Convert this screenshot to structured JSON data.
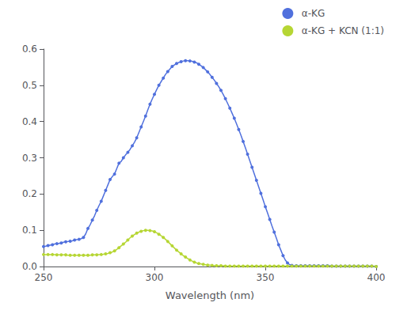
{
  "chart_data": {
    "type": "line",
    "xlabel": "Wavelength (nm)",
    "xlim": [
      250,
      400
    ],
    "ylim": [
      0,
      0.6
    ],
    "xticks": [
      250,
      300,
      350,
      400
    ],
    "yticks": [
      {
        "value": 0,
        "label": "0.0"
      },
      0.1,
      0.2,
      0.3,
      0.4,
      0.5,
      0.6
    ],
    "grid": false,
    "legend": "upper right",
    "marker": "circle",
    "x": [
      250,
      251,
      252,
      253,
      254,
      255,
      256,
      257,
      258,
      259,
      260,
      261,
      262,
      263,
      264,
      265,
      266,
      267,
      268,
      269,
      270,
      271,
      272,
      273,
      274,
      275,
      276,
      277,
      278,
      279,
      280,
      281,
      282,
      283,
      284,
      285,
      286,
      287,
      288,
      289,
      290,
      291,
      292,
      293,
      294,
      295,
      296,
      297,
      298,
      299,
      300,
      301,
      302,
      303,
      304,
      305,
      306,
      307,
      308,
      309,
      310,
      311,
      312,
      313,
      314,
      315,
      316,
      317,
      318,
      319,
      320,
      321,
      322,
      323,
      324,
      325,
      326,
      327,
      328,
      329,
      330,
      331,
      332,
      333,
      334,
      335,
      336,
      337,
      338,
      339,
      340,
      341,
      342,
      343,
      344,
      345,
      346,
      347,
      348,
      349,
      350,
      351,
      352,
      353,
      354,
      355,
      356,
      357,
      358,
      359,
      360,
      361,
      362,
      363,
      364,
      365,
      366,
      367,
      368,
      369,
      370,
      371,
      372,
      373,
      374,
      375,
      376,
      377,
      378,
      379,
      380,
      381,
      382,
      383,
      384,
      385,
      386,
      387,
      388,
      389,
      390,
      391,
      392,
      393,
      394,
      395,
      396,
      397,
      398,
      399,
      400
    ],
    "series": [
      {
        "name": "α-KG",
        "values": [
          0.055,
          0.056,
          0.058,
          0.059,
          0.06,
          0.062,
          0.063,
          0.064,
          0.065,
          0.067,
          0.068,
          0.069,
          0.07,
          0.071,
          0.073,
          0.074,
          0.075,
          0.077,
          0.08,
          0.09,
          0.105,
          0.115,
          0.128,
          0.14,
          0.155,
          0.168,
          0.18,
          0.195,
          0.21,
          0.225,
          0.24,
          0.248,
          0.255,
          0.27,
          0.285,
          0.29,
          0.3,
          0.308,
          0.315,
          0.323,
          0.333,
          0.343,
          0.355,
          0.37,
          0.385,
          0.4,
          0.415,
          0.432,
          0.448,
          0.462,
          0.475,
          0.488,
          0.5,
          0.51,
          0.52,
          0.53,
          0.538,
          0.545,
          0.552,
          0.556,
          0.56,
          0.563,
          0.565,
          0.567,
          0.568,
          0.568,
          0.567,
          0.566,
          0.564,
          0.562,
          0.558,
          0.554,
          0.549,
          0.543,
          0.537,
          0.53,
          0.522,
          0.514,
          0.505,
          0.496,
          0.486,
          0.475,
          0.463,
          0.45,
          0.437,
          0.423,
          0.409,
          0.394,
          0.378,
          0.362,
          0.345,
          0.328,
          0.31,
          0.292,
          0.274,
          0.256,
          0.238,
          0.22,
          0.202,
          0.184,
          0.165,
          0.148,
          0.13,
          0.112,
          0.095,
          0.078,
          0.06,
          0.045,
          0.03,
          0.018,
          0.01,
          0.005,
          0.003,
          0.002,
          0.002,
          0.002,
          0.002,
          0.002,
          0.002,
          0.002,
          0.002,
          0.002,
          0.002,
          0.002,
          0.002,
          0.002,
          0.002,
          0.002,
          0.002,
          0.002,
          0.001,
          0.001,
          0.001,
          0.001,
          0.001,
          0.001,
          0.001,
          0.001,
          0.001,
          0.001,
          0.001,
          0.001,
          0.001,
          0.001,
          0.001,
          0.001,
          0.001,
          0.001,
          0.001,
          0.0,
          0.0
        ]
      },
      {
        "name": "α-KG + KCN (1:1)",
        "values": [
          0.033,
          0.033,
          0.033,
          0.033,
          0.033,
          0.033,
          0.032,
          0.032,
          0.032,
          0.032,
          0.032,
          0.031,
          0.031,
          0.031,
          0.031,
          0.031,
          0.031,
          0.031,
          0.031,
          0.031,
          0.031,
          0.031,
          0.032,
          0.032,
          0.032,
          0.033,
          0.033,
          0.034,
          0.035,
          0.036,
          0.038,
          0.04,
          0.043,
          0.047,
          0.052,
          0.057,
          0.062,
          0.067,
          0.073,
          0.079,
          0.084,
          0.088,
          0.092,
          0.095,
          0.097,
          0.099,
          0.1,
          0.1,
          0.099,
          0.098,
          0.096,
          0.093,
          0.089,
          0.085,
          0.08,
          0.075,
          0.069,
          0.063,
          0.057,
          0.051,
          0.045,
          0.04,
          0.035,
          0.03,
          0.026,
          0.022,
          0.018,
          0.015,
          0.012,
          0.01,
          0.008,
          0.007,
          0.006,
          0.005,
          0.004,
          0.004,
          0.003,
          0.003,
          0.002,
          0.002,
          0.002,
          0.002,
          0.001,
          0.001,
          0.001,
          0.001,
          0.001,
          0.001,
          0.001,
          0.001,
          0.001,
          0.001,
          0.001,
          0.001,
          0.001,
          0.001,
          0.001,
          0.001,
          0.001,
          0.001,
          0.001,
          0.001,
          0.001,
          0.001,
          0.001,
          0.001,
          0.001,
          0.001,
          0.001,
          0.001,
          0.001,
          0.001,
          0.001,
          0.001,
          0.001,
          0.001,
          0.001,
          0.001,
          0.001,
          0.001,
          0.001,
          0.001,
          0.001,
          0.001,
          0.001,
          0.001,
          0.001,
          0.001,
          0.001,
          0.001,
          0.001,
          0.001,
          0.001,
          0.001,
          0.001,
          0.001,
          0.001,
          0.001,
          0.001,
          0.001,
          0.001,
          0.001,
          0.001,
          0.001,
          0.001,
          0.001,
          0.001,
          0.001,
          0.001,
          0.001,
          0.0
        ]
      }
    ]
  }
}
